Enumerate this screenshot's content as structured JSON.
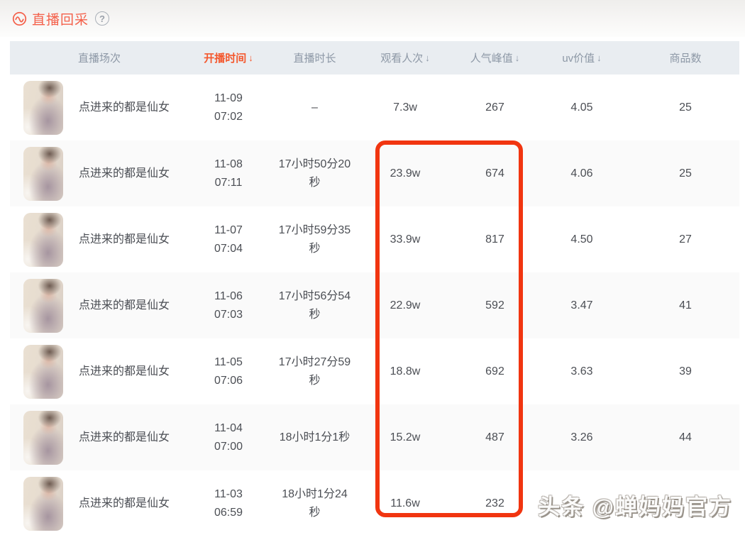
{
  "page": {
    "title": "直播回采"
  },
  "icons": {
    "back_wave_icon": "circle-wave",
    "help_glyph": "?",
    "sort_arrow": "↓"
  },
  "colors": {
    "accent": "#f4604a",
    "active_sort": "#f4582e",
    "annotation_box": "#f13510",
    "header_bg": "#e9edf1",
    "header_text": "#8d98a6",
    "body_text": "#4b4e54",
    "alt_row_bg": "#fafafa"
  },
  "table": {
    "columns": [
      {
        "key": "session",
        "label": "直播场次",
        "sortable": false,
        "active": false
      },
      {
        "key": "start_time",
        "label": "开播时间",
        "sortable": true,
        "active": true
      },
      {
        "key": "duration",
        "label": "直播时长",
        "sortable": false,
        "active": false
      },
      {
        "key": "views",
        "label": "观看人次",
        "sortable": true,
        "active": false
      },
      {
        "key": "peak",
        "label": "人气峰值",
        "sortable": true,
        "active": false
      },
      {
        "key": "uv",
        "label": "uv价值",
        "sortable": true,
        "active": false
      },
      {
        "key": "products",
        "label": "商品数",
        "sortable": false,
        "active": false
      }
    ],
    "rows": [
      {
        "title": "点进来的都是仙女",
        "date": "11-09",
        "time": "07:02",
        "duration": "–",
        "views": "7.3w",
        "peak": "267",
        "uv": "4.05",
        "products": "25"
      },
      {
        "title": "点进来的都是仙女",
        "date": "11-08",
        "time": "07:11",
        "duration": "17小时50分20秒",
        "views": "23.9w",
        "peak": "674",
        "uv": "4.06",
        "products": "25"
      },
      {
        "title": "点进来的都是仙女",
        "date": "11-07",
        "time": "07:04",
        "duration": "17小时59分35秒",
        "views": "33.9w",
        "peak": "817",
        "uv": "4.50",
        "products": "27"
      },
      {
        "title": "点进来的都是仙女",
        "date": "11-06",
        "time": "07:03",
        "duration": "17小时56分54秒",
        "views": "22.9w",
        "peak": "592",
        "uv": "3.47",
        "products": "41"
      },
      {
        "title": "点进来的都是仙女",
        "date": "11-05",
        "time": "07:06",
        "duration": "17小时27分59秒",
        "views": "18.8w",
        "peak": "692",
        "uv": "3.63",
        "products": "39"
      },
      {
        "title": "点进来的都是仙女",
        "date": "11-04",
        "time": "07:00",
        "duration": "18小时1分1秒",
        "views": "15.2w",
        "peak": "487",
        "uv": "3.26",
        "products": "44"
      },
      {
        "title": "点进来的都是仙女",
        "date": "11-03",
        "time": "06:59",
        "duration": "18小时1分24秒",
        "views": "11.6w",
        "peak": "232",
        "uv": "",
        "products": ""
      }
    ]
  },
  "annotation": {
    "description": "red rounded rectangle highlighting 观看人次 and 人气峰值 columns for rows 2-7"
  },
  "watermark": "头条 @蝉妈妈官方"
}
